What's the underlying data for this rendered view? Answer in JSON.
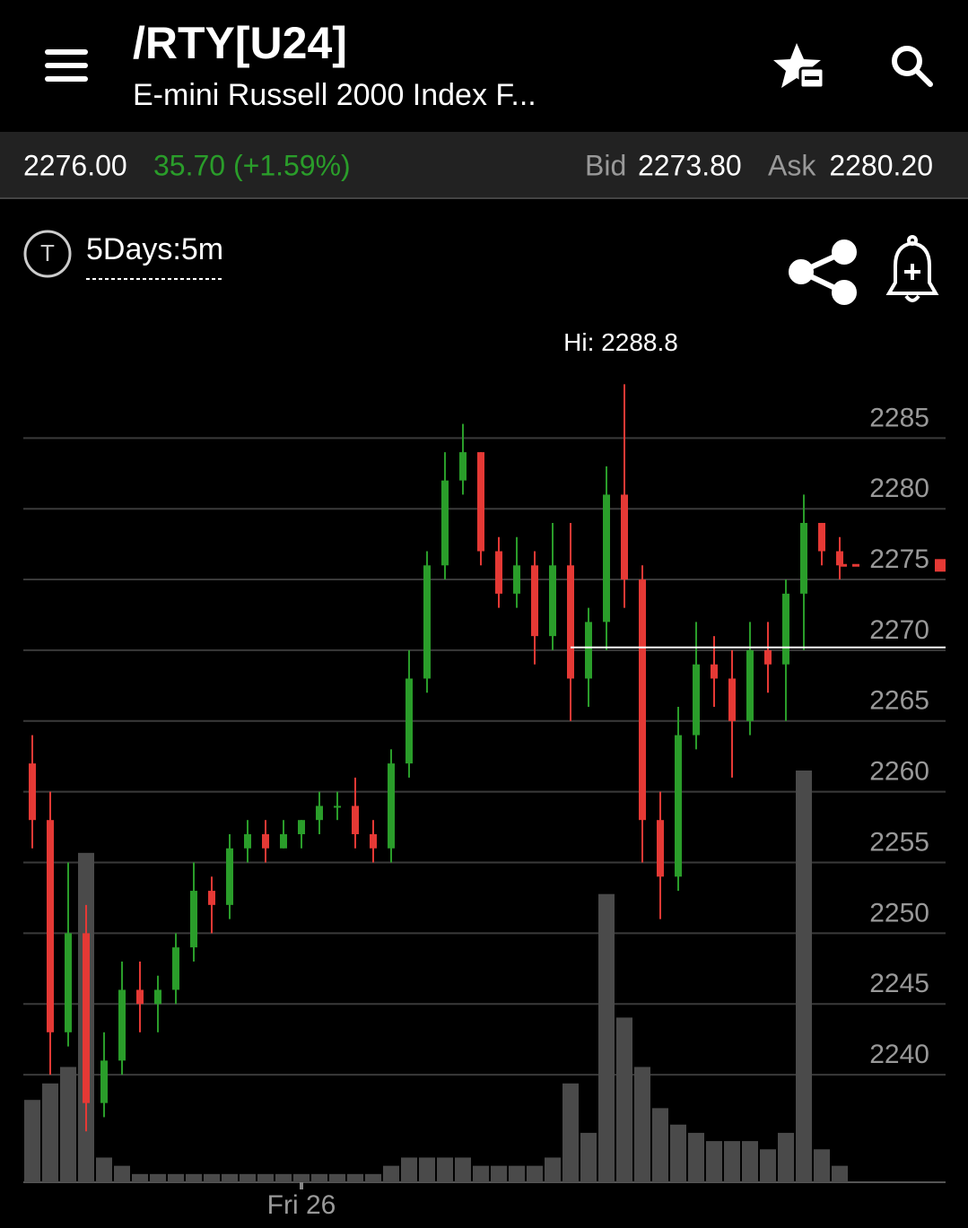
{
  "header": {
    "title": "/RTY[U24]",
    "subtitle": "E-mini Russell 2000 Index F..."
  },
  "quote": {
    "last": 2276.0,
    "last_label": "2276.00",
    "change": "35.70 (+1.59%)",
    "bid_label": "Bid",
    "bid": "2273.80",
    "ask_label": "Ask",
    "ask": "2280.20"
  },
  "chart_data": {
    "type": "candlestick",
    "badge": "T",
    "period": "5Days:5m",
    "annotation": "Hi: 2288.8",
    "categories": [
      null,
      null,
      null,
      null,
      null,
      null,
      null,
      null,
      null,
      null,
      null,
      null,
      null,
      null,
      null,
      "Fri 26",
      null,
      null,
      null,
      null,
      null,
      null,
      null,
      null,
      null,
      null,
      null,
      null,
      null,
      null,
      null,
      null,
      null,
      null,
      null,
      null,
      null,
      null,
      null,
      null,
      null,
      null,
      null,
      null,
      null,
      null
    ],
    "open": [
      2262,
      2258,
      2243,
      2250,
      2238,
      2241,
      2246,
      2245,
      2246,
      2249,
      2253,
      2252,
      2256,
      2257,
      2256,
      2257,
      2258,
      2259,
      2259,
      2257,
      2256,
      2262,
      2268,
      2276,
      2282,
      2284,
      2277,
      2274,
      2276,
      2271,
      2276,
      2268,
      2272,
      2281,
      2275,
      2258,
      2254,
      2264,
      2269,
      2268,
      2265,
      2270,
      2269,
      2274,
      2279,
      2277
    ],
    "high": [
      2264,
      2260,
      2255,
      2252,
      2243,
      2248,
      2248,
      2247,
      2250,
      2255,
      2254,
      2257,
      2258,
      2258,
      2258,
      2258,
      2260,
      2260,
      2261,
      2258,
      2263,
      2270,
      2277,
      2284,
      2286,
      2284,
      2278,
      2278,
      2277,
      2279,
      2279,
      2273,
      2283,
      2288.8,
      2276,
      2260,
      2266,
      2272,
      2271,
      2270,
      2272,
      2272,
      2275,
      2281,
      2279,
      2278
    ],
    "low": [
      2256,
      2240,
      2242,
      2236,
      2237,
      2240,
      2243,
      2243,
      2245,
      2248,
      2250,
      2251,
      2255,
      2255,
      2256,
      2256,
      2257,
      2258,
      2256,
      2255,
      2255,
      2261,
      2267,
      2275,
      2281,
      2276,
      2273,
      2273,
      2269,
      2270,
      2265,
      2266,
      2270,
      2273,
      2255,
      2251,
      2253,
      2263,
      2266,
      2261,
      2264,
      2267,
      2265,
      2270,
      2276,
      2275
    ],
    "close": [
      2258,
      2243,
      2250,
      2238,
      2241,
      2246,
      2245,
      2246,
      2249,
      2253,
      2252,
      2256,
      2257,
      2256,
      2257,
      2258,
      2259,
      2259,
      2257,
      2256,
      2262,
      2268,
      2276,
      2282,
      2284,
      2277,
      2274,
      2276,
      2271,
      2276,
      2268,
      2272,
      2281,
      2275,
      2258,
      2254,
      2264,
      2269,
      2268,
      2265,
      2270,
      2269,
      2274,
      2279,
      2277,
      2276
    ],
    "volume": [
      10,
      12,
      14,
      40,
      3,
      2,
      1,
      1,
      1,
      1,
      1,
      1,
      1,
      1,
      1,
      1,
      1,
      1,
      1,
      1,
      2,
      3,
      3,
      3,
      3,
      2,
      2,
      2,
      2,
      3,
      12,
      6,
      35,
      20,
      14,
      9,
      7,
      6,
      5,
      5,
      5,
      4,
      6,
      50,
      4,
      2
    ],
    "reference_line": 2270.2,
    "ylim": [
      2232.4,
      2290.6
    ],
    "yticks": [
      2240,
      2245,
      2250,
      2255,
      2260,
      2265,
      2270,
      2275,
      2280,
      2285
    ],
    "y2lim": [
      0,
      100
    ],
    "grid": true,
    "up_color": "#2a9d2a",
    "down_color": "#e53935",
    "volume_color": "#4a4a4a"
  }
}
